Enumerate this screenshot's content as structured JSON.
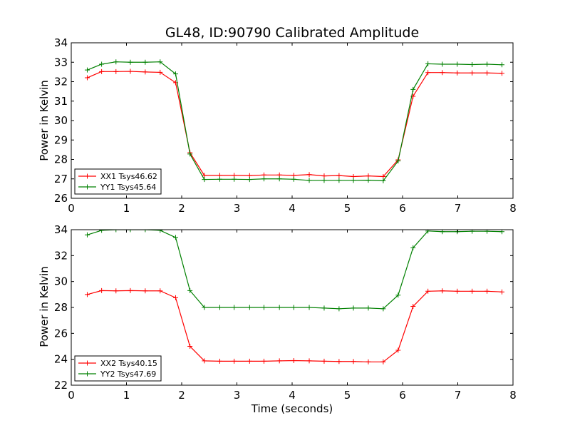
{
  "chart_data": [
    {
      "type": "line",
      "title": "GL48, ID:90790 Calibrated Amplitude",
      "xlabel": "",
      "ylabel": "Power in Kelvin",
      "xlim": [
        0,
        8
      ],
      "ylim": [
        26,
        34
      ],
      "xticks": [
        "0",
        "1",
        "2",
        "3",
        "4",
        "5",
        "6",
        "7",
        "8"
      ],
      "yticks": [
        "26",
        "27",
        "28",
        "29",
        "30",
        "31",
        "32",
        "33",
        "34"
      ],
      "grid": false,
      "legend": "lower-left",
      "x": [
        0.29,
        0.55,
        0.81,
        1.07,
        1.34,
        1.61,
        1.89,
        2.15,
        2.41,
        2.69,
        2.95,
        3.23,
        3.49,
        3.77,
        4.03,
        4.31,
        4.58,
        4.85,
        5.11,
        5.38,
        5.65,
        5.92,
        6.19,
        6.46,
        6.72,
        6.99,
        7.26,
        7.53,
        7.8
      ],
      "series": [
        {
          "name": "XX1 Tsys46.62",
          "color": "#ff0000",
          "values": [
            32.2,
            32.52,
            32.52,
            32.53,
            32.5,
            32.48,
            31.95,
            28.35,
            27.18,
            27.18,
            27.18,
            27.17,
            27.2,
            27.2,
            27.18,
            27.22,
            27.15,
            27.17,
            27.12,
            27.15,
            27.12,
            27.98,
            31.25,
            32.47,
            32.47,
            32.45,
            32.45,
            32.45,
            32.43
          ]
        },
        {
          "name": "YY1 Tsys45.64",
          "color": "#008000",
          "values": [
            32.6,
            32.9,
            33.02,
            33.0,
            33.0,
            33.02,
            32.4,
            28.28,
            26.97,
            26.98,
            26.98,
            26.97,
            27.0,
            27.0,
            26.98,
            26.92,
            26.92,
            26.92,
            26.92,
            26.93,
            26.9,
            27.92,
            31.6,
            32.92,
            32.9,
            32.9,
            32.88,
            32.9,
            32.87
          ]
        }
      ]
    },
    {
      "type": "line",
      "title": "",
      "xlabel": "Time (seconds)",
      "ylabel": "Power in Kelvin",
      "xlim": [
        0,
        8
      ],
      "ylim": [
        22,
        34
      ],
      "xticks": [
        "0",
        "1",
        "2",
        "3",
        "4",
        "5",
        "6",
        "7",
        "8"
      ],
      "yticks": [
        "22",
        "24",
        "26",
        "28",
        "30",
        "32",
        "34"
      ],
      "grid": false,
      "legend": "lower-left",
      "x": [
        0.29,
        0.55,
        0.81,
        1.07,
        1.34,
        1.61,
        1.89,
        2.15,
        2.41,
        2.69,
        2.95,
        3.23,
        3.49,
        3.77,
        4.03,
        4.31,
        4.58,
        4.85,
        5.11,
        5.38,
        5.65,
        5.92,
        6.19,
        6.46,
        6.72,
        6.99,
        7.26,
        7.53,
        7.8
      ],
      "series": [
        {
          "name": "XX2 Tsys40.15",
          "color": "#ff0000",
          "values": [
            29.0,
            29.3,
            29.28,
            29.3,
            29.28,
            29.28,
            28.75,
            25.0,
            23.88,
            23.85,
            23.85,
            23.85,
            23.85,
            23.88,
            23.9,
            23.88,
            23.85,
            23.83,
            23.83,
            23.8,
            23.8,
            24.7,
            28.08,
            29.25,
            29.28,
            29.25,
            29.25,
            29.25,
            29.2
          ]
        },
        {
          "name": "YY2 Tsys47.69",
          "color": "#008000",
          "values": [
            33.6,
            33.95,
            34.0,
            34.0,
            34.0,
            33.95,
            33.4,
            29.3,
            28.0,
            28.0,
            28.0,
            28.0,
            28.0,
            28.0,
            28.0,
            28.0,
            27.95,
            27.9,
            27.95,
            27.95,
            27.9,
            28.95,
            32.6,
            33.9,
            33.85,
            33.85,
            33.88,
            33.88,
            33.85
          ]
        }
      ]
    }
  ]
}
